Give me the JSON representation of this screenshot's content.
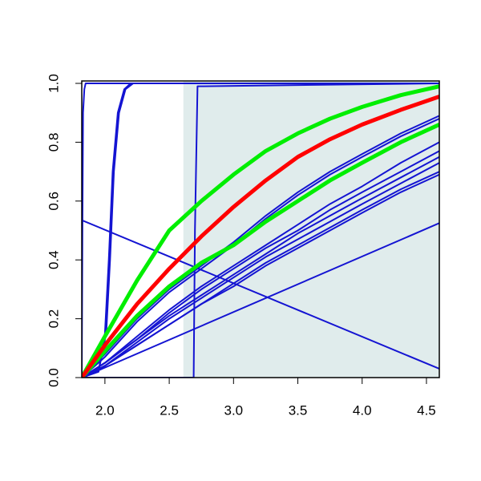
{
  "chart_data": {
    "type": "line",
    "xlim": [
      1.82,
      4.6
    ],
    "ylim": [
      0,
      1
    ],
    "xticks": [
      {
        "value": 2,
        "label": "2.0"
      },
      2.5,
      {
        "value": 3,
        "label": "3.0"
      },
      3.5,
      {
        "value": 4,
        "label": "4.0"
      },
      4.5
    ],
    "yticks": [
      {
        "value": 0,
        "label": "0.0"
      },
      0.2,
      0.4,
      0.6,
      0.8,
      {
        "value": 1,
        "label": "1.0"
      }
    ],
    "shade": {
      "xlim": [
        2.61,
        4.6
      ],
      "color": "#e0ecec"
    },
    "series": [
      {
        "color": "#1414d2",
        "line_width": 2,
        "x": [
          1.82,
          4.6
        ],
        "values": [
          0.535,
          0.03
        ]
      },
      {
        "color": "#1414d2",
        "line_width": 2,
        "x": [
          1.82,
          4.6
        ],
        "values": [
          0,
          0.525
        ]
      },
      {
        "color": "#1414d2",
        "line_width": 2,
        "x": [
          1.82,
          1.825,
          1.83,
          1.84,
          1.85,
          4.6
        ],
        "values": [
          0,
          0.5,
          0.9,
          0.98,
          1,
          1
        ]
      },
      {
        "color": "#1414d2",
        "line_width": 2,
        "x": [
          1.82,
          1.95,
          2.0,
          2.03,
          2.06,
          2.1,
          2.15,
          2.2,
          4.6
        ],
        "values": [
          0,
          0.02,
          0.15,
          0.4,
          0.7,
          0.9,
          0.98,
          1,
          1
        ]
      },
      {
        "color": "#1414d2",
        "line_width": 2,
        "x": [
          1.82,
          1.95,
          2.01,
          2.04,
          2.07,
          2.11,
          2.16,
          2.22,
          4.6
        ],
        "values": [
          0,
          0.02,
          0.15,
          0.4,
          0.7,
          0.9,
          0.98,
          1,
          1
        ]
      },
      {
        "color": "#1414d2",
        "line_width": 2,
        "x": [
          1.82,
          2.69,
          2.7,
          2.72,
          4.6
        ],
        "values": [
          0,
          0,
          0.5,
          0.99,
          1
        ]
      },
      {
        "color": "#1414d2",
        "line_width": 2,
        "x": [
          1.82,
          2.0,
          2.25,
          2.5,
          2.75,
          3.0,
          3.25,
          3.5,
          3.75,
          4.0,
          4.3,
          4.6
        ],
        "values": [
          0,
          0.08,
          0.2,
          0.3,
          0.38,
          0.46,
          0.55,
          0.63,
          0.7,
          0.76,
          0.83,
          0.89
        ]
      },
      {
        "color": "#1414d2",
        "line_width": 2,
        "x": [
          1.82,
          2.0,
          2.25,
          2.5,
          2.75,
          3.0,
          3.25,
          3.5,
          3.75,
          4.0,
          4.3,
          4.6
        ],
        "values": [
          0,
          0.07,
          0.19,
          0.29,
          0.37,
          0.45,
          0.54,
          0.62,
          0.69,
          0.75,
          0.82,
          0.88
        ]
      },
      {
        "color": "#1414d2",
        "line_width": 2,
        "x": [
          1.82,
          2.0,
          2.25,
          2.5,
          2.75,
          3.0,
          3.25,
          3.5,
          3.75,
          4.0,
          4.3,
          4.6
        ],
        "values": [
          0,
          0.05,
          0.14,
          0.23,
          0.31,
          0.38,
          0.45,
          0.52,
          0.59,
          0.65,
          0.73,
          0.8
        ]
      },
      {
        "color": "#1414d2",
        "line_width": 2,
        "x": [
          1.82,
          2.0,
          2.25,
          2.5,
          2.75,
          3.0,
          3.25,
          3.5,
          3.75,
          4.0,
          4.3,
          4.6
        ],
        "values": [
          0,
          0.05,
          0.13,
          0.22,
          0.3,
          0.37,
          0.44,
          0.5,
          0.57,
          0.63,
          0.7,
          0.77
        ]
      },
      {
        "color": "#1414d2",
        "line_width": 2,
        "x": [
          1.82,
          2.0,
          2.25,
          2.5,
          2.75,
          3.0,
          3.25,
          3.5,
          3.75,
          4.0,
          4.3,
          4.6
        ],
        "values": [
          0,
          0.05,
          0.13,
          0.21,
          0.28,
          0.35,
          0.42,
          0.49,
          0.55,
          0.61,
          0.68,
          0.75
        ]
      },
      {
        "color": "#1414d2",
        "line_width": 2,
        "x": [
          1.82,
          2.0,
          2.25,
          2.5,
          2.75,
          3.0,
          3.25,
          3.5,
          3.75,
          4.0,
          4.3,
          4.6
        ],
        "values": [
          0,
          0.04,
          0.12,
          0.2,
          0.27,
          0.34,
          0.41,
          0.47,
          0.53,
          0.59,
          0.66,
          0.73
        ]
      },
      {
        "color": "#1414d2",
        "line_width": 2,
        "x": [
          1.82,
          2.0,
          2.25,
          2.5,
          2.75,
          3.0,
          3.25,
          3.5,
          3.75,
          4.0,
          4.3,
          4.6
        ],
        "values": [
          0,
          0.04,
          0.11,
          0.18,
          0.25,
          0.32,
          0.39,
          0.45,
          0.51,
          0.57,
          0.64,
          0.7
        ]
      },
      {
        "color": "#1414d2",
        "line_width": 2,
        "x": [
          1.82,
          2.0,
          2.25,
          2.5,
          2.75,
          3.0,
          3.25,
          3.5,
          3.75,
          4.0,
          4.3,
          4.6
        ],
        "values": [
          0,
          0.04,
          0.11,
          0.18,
          0.25,
          0.31,
          0.38,
          0.44,
          0.5,
          0.56,
          0.63,
          0.69
        ]
      },
      {
        "color": "#00ee00",
        "line_width": 5,
        "x": [
          1.82,
          2.0,
          2.25,
          2.5,
          2.75,
          3.0,
          3.25,
          3.5,
          3.75,
          4.0,
          4.3,
          4.6
        ],
        "values": [
          0,
          0.09,
          0.21,
          0.31,
          0.39,
          0.45,
          0.53,
          0.6,
          0.67,
          0.73,
          0.8,
          0.86
        ]
      },
      {
        "color": "#00ee00",
        "line_width": 5,
        "x": [
          1.82,
          2.0,
          2.25,
          2.5,
          2.75,
          3.0,
          3.25,
          3.5,
          3.75,
          4.0,
          4.3,
          4.6
        ],
        "values": [
          0,
          0.14,
          0.33,
          0.5,
          0.6,
          0.69,
          0.77,
          0.83,
          0.88,
          0.92,
          0.96,
          0.99
        ]
      },
      {
        "color": "#ff0000",
        "line_width": 5,
        "x": [
          1.82,
          2.0,
          2.25,
          2.5,
          2.75,
          3.0,
          3.25,
          3.5,
          3.75,
          4.0,
          4.3,
          4.6
        ],
        "values": [
          0,
          0.11,
          0.25,
          0.37,
          0.48,
          0.58,
          0.67,
          0.75,
          0.81,
          0.86,
          0.91,
          0.955
        ]
      }
    ]
  }
}
